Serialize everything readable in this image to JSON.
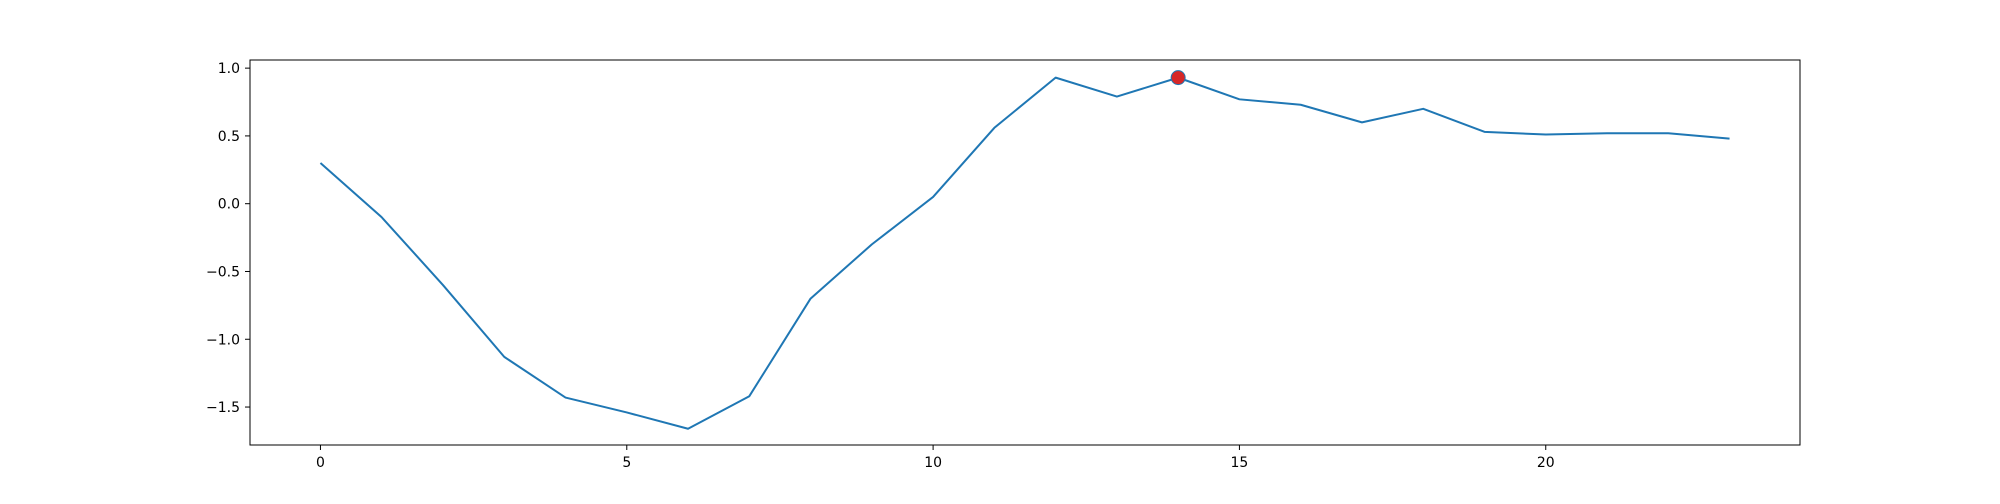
{
  "chart_data": {
    "type": "line",
    "title": "",
    "xlabel": "",
    "ylabel": "",
    "xlim": [
      -1.15,
      24.15
    ],
    "ylim": [
      -1.78,
      1.06
    ],
    "x_ticks": [
      0,
      5,
      10,
      15,
      20
    ],
    "y_ticks": [
      1.0,
      0.5,
      0.0,
      -0.5,
      -1.0,
      -1.5
    ],
    "x_tick_labels": [
      "0",
      "5",
      "10",
      "15",
      "20"
    ],
    "y_tick_labels": [
      "1.0",
      "0.5",
      "0.0",
      "−0.5",
      "−1.0",
      "−1.5"
    ],
    "grid": false,
    "series": [
      {
        "color": "#1f77b4",
        "x": [
          0,
          1,
          2,
          3,
          4,
          5,
          6,
          7,
          8,
          9,
          10,
          11,
          12,
          13,
          14,
          15,
          16,
          17,
          18,
          19,
          20,
          21,
          22,
          23
        ],
        "values": [
          0.3,
          -0.1,
          -0.6,
          -1.13,
          -1.43,
          -1.54,
          -1.66,
          -1.42,
          -0.7,
          -0.3,
          0.05,
          0.56,
          0.93,
          0.79,
          0.93,
          0.77,
          0.73,
          0.6,
          0.7,
          0.53,
          0.51,
          0.52,
          0.52,
          0.48
        ]
      }
    ],
    "highlight_point": {
      "x": 14,
      "y": 0.93,
      "color": "#d62728"
    }
  }
}
